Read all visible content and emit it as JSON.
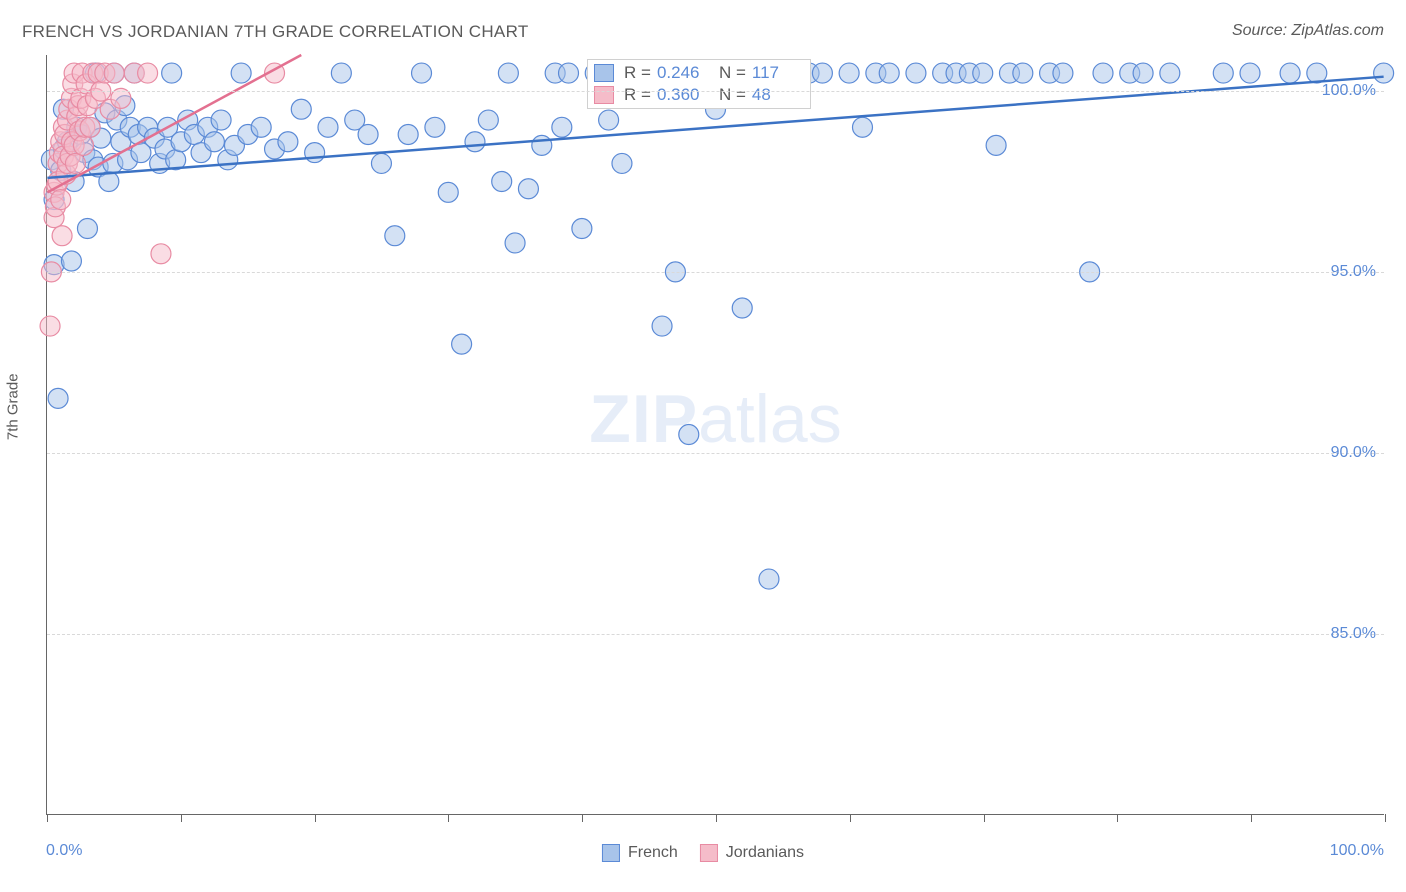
{
  "title": "FRENCH VS JORDANIAN 7TH GRADE CORRELATION CHART",
  "source": "Source: ZipAtlas.com",
  "y_axis_label": "7th Grade",
  "watermark_bold": "ZIP",
  "watermark_rest": "atlas",
  "chart": {
    "type": "scatter",
    "xlim": [
      0,
      100
    ],
    "ylim": [
      80,
      101
    ],
    "y_ticks": [
      85,
      90,
      95,
      100
    ],
    "y_tick_labels": [
      "85.0%",
      "90.0%",
      "95.0%",
      "100.0%"
    ],
    "x_ticks": [
      0,
      10,
      20,
      30,
      40,
      50,
      60,
      70,
      80,
      90,
      100
    ],
    "x_label_min": "0.0%",
    "x_label_max": "100.0%",
    "background_color": "#ffffff",
    "grid_color": "#d9d9d9",
    "axis_color": "#666666",
    "label_color": "#5b8ad6",
    "series": [
      {
        "name": "French",
        "fill": "#a8c4ea",
        "stroke": "#5b8ad6",
        "line_color": "#3b72c4",
        "marker_radius": 10,
        "fill_opacity": 0.5,
        "R": "0.246",
        "N": "117",
        "trend": {
          "x1": 0,
          "y1": 97.6,
          "x2": 100,
          "y2": 100.4
        },
        "points": [
          [
            0.3,
            98.1
          ],
          [
            0.5,
            97.0
          ],
          [
            0.5,
            95.2
          ],
          [
            0.8,
            91.5
          ],
          [
            1.0,
            97.8
          ],
          [
            1.2,
            99.5
          ],
          [
            1.2,
            98.4
          ],
          [
            1.5,
            98.6
          ],
          [
            1.8,
            95.3
          ],
          [
            2.0,
            97.5
          ],
          [
            2.2,
            99.0
          ],
          [
            2.5,
            98.8
          ],
          [
            2.8,
            98.3
          ],
          [
            3.0,
            96.2
          ],
          [
            3.2,
            99.0
          ],
          [
            3.4,
            98.1
          ],
          [
            3.6,
            100.5
          ],
          [
            3.8,
            97.9
          ],
          [
            4.0,
            98.7
          ],
          [
            4.3,
            99.4
          ],
          [
            4.6,
            97.5
          ],
          [
            4.9,
            98.0
          ],
          [
            5.0,
            100.5
          ],
          [
            5.2,
            99.2
          ],
          [
            5.5,
            98.6
          ],
          [
            5.8,
            99.6
          ],
          [
            6.0,
            98.1
          ],
          [
            6.2,
            99.0
          ],
          [
            6.5,
            100.5
          ],
          [
            6.8,
            98.8
          ],
          [
            7.0,
            98.3
          ],
          [
            7.5,
            99.0
          ],
          [
            8.0,
            98.7
          ],
          [
            8.4,
            98.0
          ],
          [
            8.8,
            98.4
          ],
          [
            9.0,
            99.0
          ],
          [
            9.3,
            100.5
          ],
          [
            9.6,
            98.1
          ],
          [
            10.0,
            98.6
          ],
          [
            10.5,
            99.2
          ],
          [
            11.0,
            98.8
          ],
          [
            11.5,
            98.3
          ],
          [
            12.0,
            99.0
          ],
          [
            12.5,
            98.6
          ],
          [
            13.0,
            99.2
          ],
          [
            13.5,
            98.1
          ],
          [
            14.0,
            98.5
          ],
          [
            14.5,
            100.5
          ],
          [
            15.0,
            98.8
          ],
          [
            16.0,
            99.0
          ],
          [
            17.0,
            98.4
          ],
          [
            18.0,
            98.6
          ],
          [
            19.0,
            99.5
          ],
          [
            20.0,
            98.3
          ],
          [
            21.0,
            99.0
          ],
          [
            22.0,
            100.5
          ],
          [
            23.0,
            99.2
          ],
          [
            24.0,
            98.8
          ],
          [
            25.0,
            98.0
          ],
          [
            26.0,
            96.0
          ],
          [
            27.0,
            98.8
          ],
          [
            28.0,
            100.5
          ],
          [
            29.0,
            99.0
          ],
          [
            30.0,
            97.2
          ],
          [
            31.0,
            93.0
          ],
          [
            32.0,
            98.6
          ],
          [
            33.0,
            99.2
          ],
          [
            34.0,
            97.5
          ],
          [
            34.5,
            100.5
          ],
          [
            35.0,
            95.8
          ],
          [
            36.0,
            97.3
          ],
          [
            37.0,
            98.5
          ],
          [
            38.0,
            100.5
          ],
          [
            38.5,
            99.0
          ],
          [
            39.0,
            100.5
          ],
          [
            40.0,
            96.2
          ],
          [
            41.0,
            100.5
          ],
          [
            42.0,
            99.2
          ],
          [
            43.0,
            98.0
          ],
          [
            44.0,
            100.5
          ],
          [
            45.0,
            100.5
          ],
          [
            46.0,
            93.5
          ],
          [
            47.0,
            95.0
          ],
          [
            48.0,
            90.5
          ],
          [
            49.0,
            100.5
          ],
          [
            50.0,
            99.5
          ],
          [
            52.0,
            94.0
          ],
          [
            53.0,
            100.5
          ],
          [
            54.0,
            86.5
          ],
          [
            55.0,
            100.5
          ],
          [
            56.0,
            100.5
          ],
          [
            57.0,
            100.5
          ],
          [
            58.0,
            100.5
          ],
          [
            60.0,
            100.5
          ],
          [
            61.0,
            99.0
          ],
          [
            62.0,
            100.5
          ],
          [
            63.0,
            100.5
          ],
          [
            65.0,
            100.5
          ],
          [
            67.0,
            100.5
          ],
          [
            68.0,
            100.5
          ],
          [
            69.0,
            100.5
          ],
          [
            70.0,
            100.5
          ],
          [
            71.0,
            98.5
          ],
          [
            72.0,
            100.5
          ],
          [
            73.0,
            100.5
          ],
          [
            75.0,
            100.5
          ],
          [
            76.0,
            100.5
          ],
          [
            78.0,
            95.0
          ],
          [
            79.0,
            100.5
          ],
          [
            81.0,
            100.5
          ],
          [
            82.0,
            100.5
          ],
          [
            84.0,
            100.5
          ],
          [
            88.0,
            100.5
          ],
          [
            90.0,
            100.5
          ],
          [
            93.0,
            100.5
          ],
          [
            95.0,
            100.5
          ],
          [
            100.0,
            100.5
          ]
        ]
      },
      {
        "name": "Jordanians",
        "fill": "#f5bcc9",
        "stroke": "#e88ba3",
        "line_color": "#e37090",
        "marker_radius": 10,
        "fill_opacity": 0.5,
        "R": "0.360",
        "N": "48",
        "trend": {
          "x1": 0,
          "y1": 97.2,
          "x2": 19,
          "y2": 101
        },
        "points": [
          [
            0.2,
            93.5
          ],
          [
            0.3,
            95.0
          ],
          [
            0.5,
            96.5
          ],
          [
            0.5,
            97.2
          ],
          [
            0.6,
            96.8
          ],
          [
            0.7,
            97.4
          ],
          [
            0.8,
            98.0
          ],
          [
            0.8,
            97.5
          ],
          [
            0.9,
            98.3
          ],
          [
            1.0,
            97.0
          ],
          [
            1.0,
            98.6
          ],
          [
            1.1,
            96.0
          ],
          [
            1.2,
            98.2
          ],
          [
            1.2,
            99.0
          ],
          [
            1.3,
            98.8
          ],
          [
            1.4,
            97.7
          ],
          [
            1.5,
            98.0
          ],
          [
            1.5,
            99.2
          ],
          [
            1.6,
            99.5
          ],
          [
            1.7,
            98.2
          ],
          [
            1.8,
            98.6
          ],
          [
            1.8,
            99.8
          ],
          [
            1.9,
            100.2
          ],
          [
            2.0,
            100.5
          ],
          [
            2.0,
            98.5
          ],
          [
            2.1,
            98.0
          ],
          [
            2.2,
            99.3
          ],
          [
            2.3,
            99.6
          ],
          [
            2.4,
            98.9
          ],
          [
            2.5,
            99.8
          ],
          [
            2.6,
            100.5
          ],
          [
            2.7,
            98.5
          ],
          [
            2.8,
            99.0
          ],
          [
            2.9,
            100.2
          ],
          [
            3.0,
            99.6
          ],
          [
            3.2,
            99.0
          ],
          [
            3.4,
            100.5
          ],
          [
            3.6,
            99.8
          ],
          [
            3.8,
            100.5
          ],
          [
            4.0,
            100.0
          ],
          [
            4.3,
            100.5
          ],
          [
            4.7,
            99.5
          ],
          [
            5.0,
            100.5
          ],
          [
            5.5,
            99.8
          ],
          [
            6.5,
            100.5
          ],
          [
            7.5,
            100.5
          ],
          [
            8.5,
            95.5
          ],
          [
            17.0,
            100.5
          ]
        ]
      }
    ],
    "legend_labels": [
      "French",
      "Jordanians"
    ],
    "stats_labels": {
      "R": "R =",
      "N": "N ="
    }
  }
}
